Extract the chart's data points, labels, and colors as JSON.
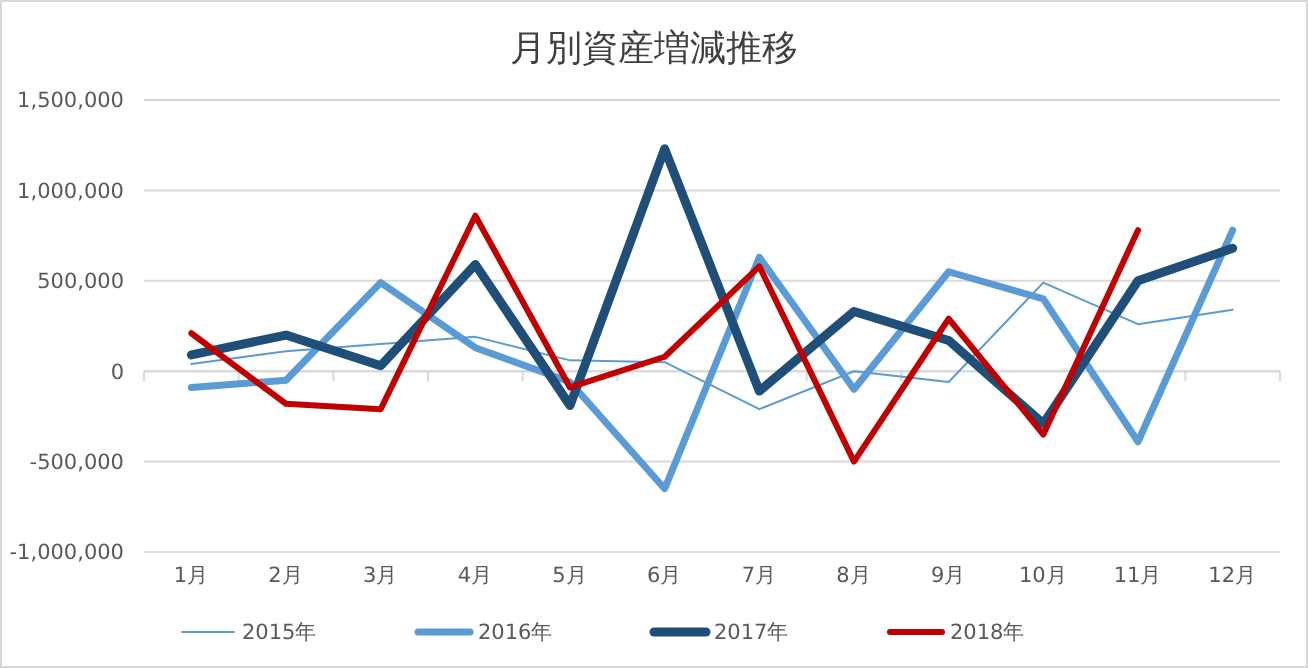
{
  "chart_data": {
    "type": "line",
    "title": "月別資産増減推移",
    "categories": [
      "1月",
      "2月",
      "3月",
      "4月",
      "5月",
      "6月",
      "7月",
      "8月",
      "9月",
      "10月",
      "11月",
      "12月"
    ],
    "series": [
      {
        "name": "2015年",
        "color": "#5b9bd5",
        "values": [
          40000,
          110000,
          150000,
          190000,
          60000,
          50000,
          -210000,
          0,
          -60000,
          490000,
          260000,
          340000
        ]
      },
      {
        "name": "2016年",
        "color": "#5b9bd5",
        "values": [
          -90000,
          -50000,
          490000,
          130000,
          -60000,
          -650000,
          630000,
          -100000,
          550000,
          400000,
          -390000,
          780000
        ]
      },
      {
        "name": "2017年",
        "color": "#1f4e79",
        "values": [
          90000,
          200000,
          30000,
          590000,
          -190000,
          1230000,
          -110000,
          330000,
          170000,
          -290000,
          500000,
          680000
        ]
      },
      {
        "name": "2018年",
        "color": "#c00000",
        "values": [
          210000,
          -180000,
          -210000,
          860000,
          -90000,
          80000,
          580000,
          -500000,
          290000,
          -350000,
          780000,
          null
        ]
      }
    ],
    "ylim": [
      -1000000,
      1500000
    ],
    "yticks": [
      {
        "value": -1000000,
        "label": "-1,000,000"
      },
      {
        "value": -500000,
        "label": "-500,000"
      },
      {
        "value": 0,
        "label": "0"
      },
      {
        "value": 500000,
        "label": "500,000"
      },
      {
        "value": 1000000,
        "label": "1,000,000"
      },
      {
        "value": 1500000,
        "label": "1,500,000"
      }
    ],
    "grid": "y",
    "legend": "bottom",
    "marker": "none",
    "line_style": "solid"
  }
}
